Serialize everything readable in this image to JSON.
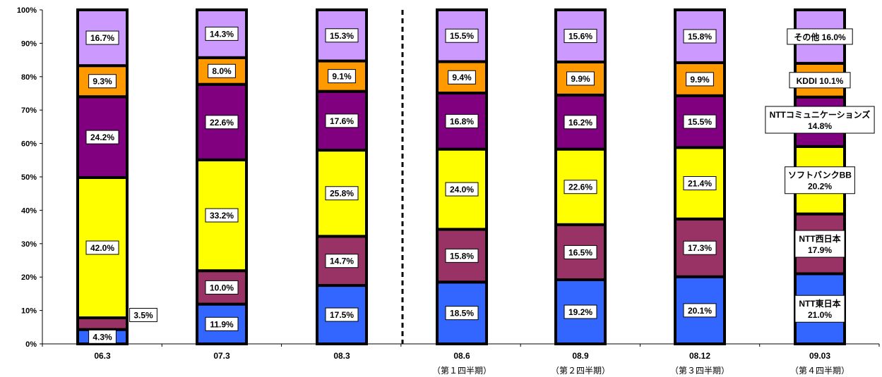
{
  "chart_data": {
    "type": "bar",
    "stacked": true,
    "categories": [
      "06.3",
      "07.3",
      "08.3",
      "08.6",
      "08.9",
      "08.12",
      "09.03"
    ],
    "category_sublabels": [
      "",
      "",
      "",
      "（第１四半期）",
      "（第２四半期）",
      "（第３四半期）",
      "（第４四半期）"
    ],
    "y_ticks": [
      "0%",
      "10%",
      "20%",
      "30%",
      "40%",
      "50%",
      "60%",
      "70%",
      "80%",
      "90%",
      "100%"
    ],
    "ylim": [
      0,
      100
    ],
    "series": [
      {
        "key": "ntt_east",
        "color": "#3366FF",
        "values": [
          4.3,
          11.9,
          17.5,
          18.5,
          19.2,
          20.1,
          21.0
        ],
        "labels": [
          "4.3%",
          "11.9%",
          "17.5%",
          "18.5%",
          "19.2%",
          "20.1%",
          ""
        ]
      },
      {
        "key": "ntt_west",
        "color": "#993366",
        "values": [
          3.5,
          10.0,
          14.7,
          15.8,
          16.5,
          17.3,
          17.9
        ],
        "labels": [
          "3.5%",
          "10.0%",
          "14.7%",
          "15.8%",
          "16.5%",
          "17.3%",
          ""
        ]
      },
      {
        "key": "softbank",
        "color": "#FFFF00",
        "values": [
          42.0,
          33.2,
          25.8,
          24.0,
          22.6,
          21.4,
          20.2
        ],
        "labels": [
          "42.0%",
          "33.2%",
          "25.8%",
          "24.0%",
          "22.6%",
          "21.4%",
          ""
        ]
      },
      {
        "key": "ntt_com",
        "color": "#800080",
        "values": [
          24.2,
          22.6,
          17.6,
          16.8,
          16.2,
          15.5,
          14.8
        ],
        "labels": [
          "24.2%",
          "22.6%",
          "17.6%",
          "16.8%",
          "16.2%",
          "15.5%",
          ""
        ]
      },
      {
        "key": "kddi",
        "color": "#FF9900",
        "values": [
          9.3,
          8.0,
          9.1,
          9.4,
          9.9,
          9.9,
          10.1
        ],
        "labels": [
          "9.3%",
          "8.0%",
          "9.1%",
          "9.4%",
          "9.9%",
          "9.9%",
          ""
        ]
      },
      {
        "key": "other",
        "color": "#CC99FF",
        "values": [
          16.7,
          14.3,
          15.3,
          15.5,
          15.6,
          15.8,
          16.0
        ],
        "labels": [
          "16.7%",
          "14.3%",
          "15.3%",
          "15.5%",
          "15.6%",
          "15.8%",
          ""
        ]
      }
    ],
    "last_bar_legend_labels": [
      {
        "lines": [
          "NTT東日本",
          "21.0%"
        ]
      },
      {
        "lines": [
          "NTT西日本",
          "17.9%"
        ]
      },
      {
        "lines": [
          "ソフトバンクBB",
          "20.2%"
        ]
      },
      {
        "lines": [
          "NTTコミュニケーションズ",
          "14.8%"
        ]
      },
      {
        "lines": [
          "KDDI 10.1%"
        ]
      },
      {
        "lines": [
          "その他 16.0%"
        ]
      }
    ],
    "grid": false,
    "divider_after_category": "08.3"
  }
}
